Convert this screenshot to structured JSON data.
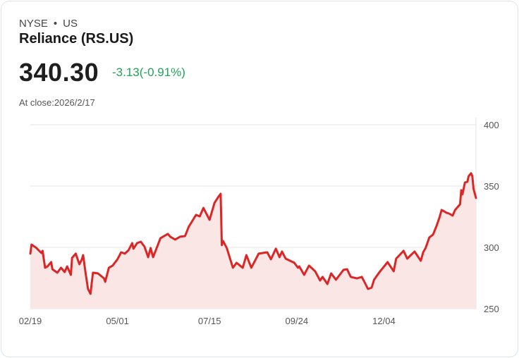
{
  "header": {
    "exchange": "NYSE",
    "separator": "•",
    "region": "US",
    "title": "Reliance (RS.US)",
    "price": "340.30",
    "change": "-3.13(-0.91%)",
    "close_label": "At close:2026/2/17"
  },
  "colors": {
    "line": "#dc2626",
    "fill": "#fbe6e6",
    "change": "#22a35a",
    "grid": "#e3e3e3"
  },
  "chart_data": {
    "type": "area",
    "x_unit": "days since 2025-02-19",
    "xlim": [
      0,
      363
    ],
    "ylim": [
      250,
      400
    ],
    "yticks": [
      400,
      350,
      300,
      250
    ],
    "xticks": [
      {
        "day": 0,
        "label": "02/19"
      },
      {
        "day": 71,
        "label": "05/01"
      },
      {
        "day": 146,
        "label": "07/15"
      },
      {
        "day": 217,
        "label": "09/24"
      },
      {
        "day": 288,
        "label": "12/04"
      }
    ],
    "grid": true,
    "points": [
      [
        0,
        294.9
      ],
      [
        1,
        302.3
      ],
      [
        5,
        299.5
      ],
      [
        9,
        295.4
      ],
      [
        10,
        297.2
      ],
      [
        12,
        283.4
      ],
      [
        14,
        284.5
      ],
      [
        17,
        288.0
      ],
      [
        18,
        282.2
      ],
      [
        22,
        279.3
      ],
      [
        25,
        283.4
      ],
      [
        28,
        279.9
      ],
      [
        30,
        284.5
      ],
      [
        33,
        277.6
      ],
      [
        34,
        291.4
      ],
      [
        37,
        294.9
      ],
      [
        40,
        286.2
      ],
      [
        42,
        290.3
      ],
      [
        43,
        293.7
      ],
      [
        45,
        279.3
      ],
      [
        47,
        266.1
      ],
      [
        49,
        262.1
      ],
      [
        51,
        279.3
      ],
      [
        55,
        278.8
      ],
      [
        60,
        274.7
      ],
      [
        61,
        271.9
      ],
      [
        64,
        283.4
      ],
      [
        67,
        285.1
      ],
      [
        71,
        290.3
      ],
      [
        74,
        296.0
      ],
      [
        77,
        294.9
      ],
      [
        80,
        297.7
      ],
      [
        83,
        303.5
      ],
      [
        84,
        298.9
      ],
      [
        87,
        303.5
      ],
      [
        90,
        304.6
      ],
      [
        93,
        300.6
      ],
      [
        96,
        292.0
      ],
      [
        98,
        299.5
      ],
      [
        100,
        292.0
      ],
      [
        106,
        307.5
      ],
      [
        112,
        311.0
      ],
      [
        114,
        308.7
      ],
      [
        118,
        306.4
      ],
      [
        122,
        308.7
      ],
      [
        126,
        309.2
      ],
      [
        129,
        316.7
      ],
      [
        135,
        326.5
      ],
      [
        138,
        325.3
      ],
      [
        141,
        332.2
      ],
      [
        143,
        328.2
      ],
      [
        146,
        322.5
      ],
      [
        150,
        336.3
      ],
      [
        153,
        340.9
      ],
      [
        155,
        343.7
      ],
      [
        156,
        301.8
      ],
      [
        157,
        305.2
      ],
      [
        160,
        299.5
      ],
      [
        165,
        283.4
      ],
      [
        168,
        287.4
      ],
      [
        173,
        283.4
      ],
      [
        176,
        293.7
      ],
      [
        180,
        283.4
      ],
      [
        186,
        294.9
      ],
      [
        193,
        296.0
      ],
      [
        196,
        290.3
      ],
      [
        200,
        298.9
      ],
      [
        203,
        292.0
      ],
      [
        205,
        296.6
      ],
      [
        208,
        290.8
      ],
      [
        215,
        287.4
      ],
      [
        218,
        283.4
      ],
      [
        219,
        284.5
      ],
      [
        221,
        281.1
      ],
      [
        223,
        277.6
      ],
      [
        227,
        285.1
      ],
      [
        232,
        280.5
      ],
      [
        236,
        273.0
      ],
      [
        238,
        275.9
      ],
      [
        242,
        270.1
      ],
      [
        245,
        278.8
      ],
      [
        249,
        273.6
      ],
      [
        255,
        281.6
      ],
      [
        258,
        282.2
      ],
      [
        261,
        275.9
      ],
      [
        266,
        274.7
      ],
      [
        270,
        275.9
      ],
      [
        273,
        270.1
      ],
      [
        275,
        266.1
      ],
      [
        278,
        267.2
      ],
      [
        280,
        273.6
      ],
      [
        284,
        279.3
      ],
      [
        291,
        288.0
      ],
      [
        296,
        280.5
      ],
      [
        298,
        290.8
      ],
      [
        304,
        297.2
      ],
      [
        307,
        290.8
      ],
      [
        313,
        296.6
      ],
      [
        318,
        289.1
      ],
      [
        320,
        296.0
      ],
      [
        322,
        299.5
      ],
      [
        325,
        308.1
      ],
      [
        328,
        310.4
      ],
      [
        331,
        317.9
      ],
      [
        333,
        323.6
      ],
      [
        335,
        330.5
      ],
      [
        337,
        329.4
      ],
      [
        339,
        328.2
      ],
      [
        341,
        327.6
      ],
      [
        344,
        325.9
      ],
      [
        346,
        330.5
      ],
      [
        350,
        335.1
      ],
      [
        351,
        346.6
      ],
      [
        352,
        343.2
      ],
      [
        354,
        352.9
      ],
      [
        356,
        353.5
      ],
      [
        357,
        358.1
      ],
      [
        359,
        360.4
      ],
      [
        360,
        358.1
      ],
      [
        361,
        347.8
      ],
      [
        363,
        340.3
      ]
    ]
  }
}
